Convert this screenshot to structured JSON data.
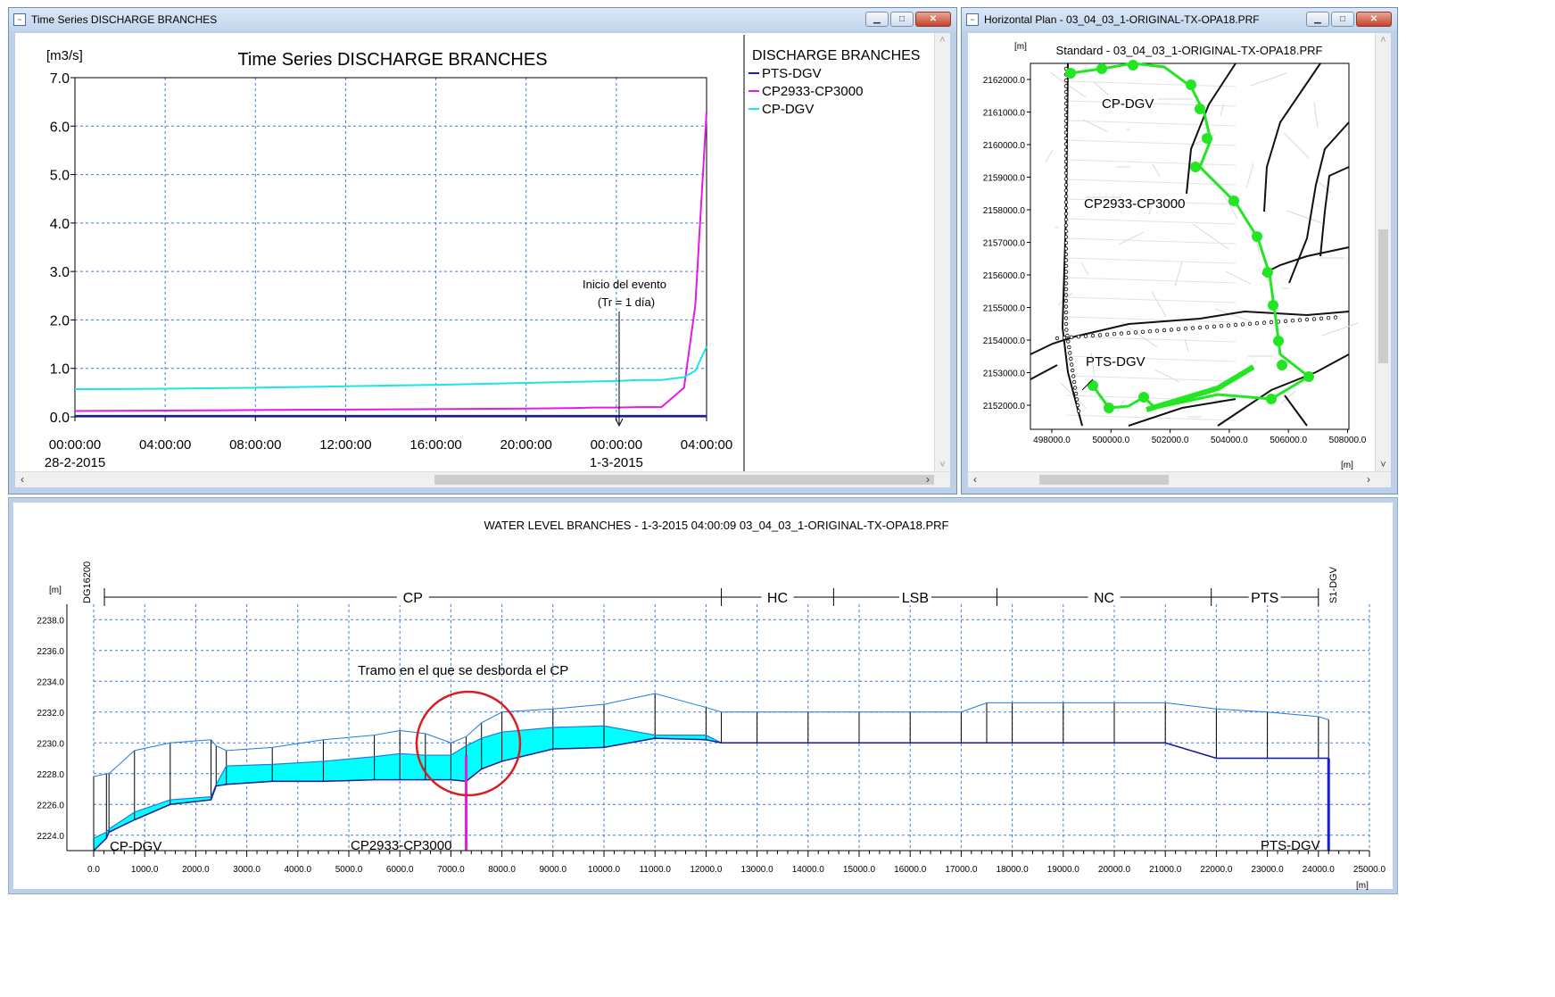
{
  "ts_window": {
    "title": "Time Series DISCHARGE BRANCHES",
    "chart_title": "Time Series  DISCHARGE  BRANCHES",
    "unit": "[m3/s]",
    "legend_title": "DISCHARGE  BRANCHES",
    "annotation_line1": "Inicio del evento",
    "annotation_line2": "(Tr = 1 día)"
  },
  "plan_window": {
    "title": "Horizontal Plan - 03_04_03_1-ORIGINAL-TX-OPA18.PRF",
    "subtitle": "Standard - 03_04_03_1-ORIGINAL-TX-OPA18.PRF",
    "unit_y": "[m]",
    "unit_x": "[m]",
    "labels": [
      "CP-DGV",
      "CP2933-CP3000",
      "PTS-DGV"
    ],
    "yticks": [
      "2162000.0",
      "2161000.0",
      "2160000.0",
      "2159000.0",
      "2158000.0",
      "2157000.0",
      "2156000.0",
      "2155000.0",
      "2154000.0",
      "2153000.0",
      "2152000.0"
    ],
    "xticks": [
      "498000.0",
      "500000.0",
      "502000.0",
      "504000.0",
      "506000.0",
      "508000.0"
    ]
  },
  "profile_window": {
    "title": "WATER LEVEL  BRANCHES - 1-3-2015 04:00:09 03_04_03_1-ORIGINAL-TX-OPA18.PRF",
    "unit_y": "[m]",
    "unit_x": "[m]",
    "annotation": "Tramo en el que se desborda el CP",
    "left_node": "DG16200",
    "right_node": "S1-DGV",
    "branches": [
      "CP",
      "HC",
      "LSB",
      "NC",
      "PTS"
    ],
    "labels": [
      "CP-DGV",
      "CP2933-CP3000",
      "PTS-DGV"
    ]
  },
  "chart_data": [
    {
      "type": "line",
      "title": "Time Series  DISCHARGE  BRANCHES",
      "ylabel": "[m3/s]",
      "xlabel": "",
      "ylim": [
        0,
        7
      ],
      "yticks": [
        "0.0",
        "1.0",
        "2.0",
        "3.0",
        "4.0",
        "5.0",
        "6.0",
        "7.0"
      ],
      "xtick_times": [
        "00:00:00",
        "04:00:00",
        "08:00:00",
        "12:00:00",
        "16:00:00",
        "20:00:00",
        "00:00:00",
        "04:00:00"
      ],
      "xtick_dates": [
        "28-2-2015",
        "",
        "",
        "",
        "",
        "",
        "1-3-2015",
        ""
      ],
      "x": [
        "2015-02-28 00:00",
        "2015-02-28 04:00",
        "2015-02-28 08:00",
        "2015-02-28 12:00",
        "2015-02-28 16:00",
        "2015-02-28 20:00",
        "2015-02-28 22:00",
        "2015-02-28 23:00",
        "2015-03-01 00:00",
        "2015-03-01 01:00",
        "2015-03-01 02:00",
        "2015-03-01 03:00",
        "2015-03-01 03:30",
        "2015-03-01 04:00"
      ],
      "series": [
        {
          "name": "PTS-DGV",
          "color": "#1a1ad6",
          "values": [
            0.02,
            0.02,
            0.02,
            0.02,
            0.02,
            0.02,
            0.02,
            0.02,
            0.02,
            0.02,
            0.02,
            0.02,
            0.02,
            0.02
          ]
        },
        {
          "name": "CP2933-CP3000",
          "color": "#e619e6",
          "values": [
            0.12,
            0.13,
            0.14,
            0.15,
            0.16,
            0.17,
            0.18,
            0.19,
            0.19,
            0.2,
            0.2,
            0.6,
            2.3,
            6.3
          ]
        },
        {
          "name": "CP-DGV",
          "color": "#19e6e6",
          "values": [
            0.57,
            0.58,
            0.6,
            0.63,
            0.66,
            0.7,
            0.72,
            0.73,
            0.74,
            0.76,
            0.76,
            0.82,
            0.95,
            1.45
          ]
        }
      ]
    },
    {
      "type": "area",
      "title": "WATER LEVEL  BRANCHES - 1-3-2015 04:00:09 03_04_03_1-ORIGINAL-TX-OPA18.PRF",
      "ylabel": "[m]",
      "xlabel": "[m]",
      "xlim": [
        0,
        25000
      ],
      "ylim": [
        2223,
        2239
      ],
      "xticks": [
        "0.0",
        "1000.0",
        "2000.0",
        "3000.0",
        "4000.0",
        "5000.0",
        "6000.0",
        "7000.0",
        "8000.0",
        "9000.0",
        "10000.0",
        "11000.0",
        "12000.0",
        "13000.0",
        "14000.0",
        "15000.0",
        "16000.0",
        "17000.0",
        "18000.0",
        "19000.0",
        "20000.0",
        "21000.0",
        "22000.0",
        "23000.0",
        "24000.0",
        "25000.0"
      ],
      "yticks": [
        "2224.0",
        "2226.0",
        "2228.0",
        "2230.0",
        "2232.0",
        "2234.0",
        "2236.0",
        "2238.0"
      ],
      "x": [
        0,
        250,
        300,
        800,
        1500,
        2300,
        2400,
        2600,
        3500,
        4500,
        5500,
        6000,
        6500,
        7000,
        7300,
        7600,
        8000,
        9000,
        10000,
        11000,
        12000,
        12300,
        13000,
        14000,
        15000,
        16000,
        17000,
        17500,
        18000,
        19000,
        20000,
        21000,
        22000,
        23000,
        24000,
        24200
      ],
      "series": [
        {
          "name": "bed",
          "values": [
            2223.0,
            2223.8,
            2224.2,
            2225.0,
            2226.0,
            2226.3,
            2227.2,
            2227.3,
            2227.5,
            2227.5,
            2227.6,
            2227.6,
            2227.6,
            2227.6,
            2227.5,
            2228.3,
            2228.8,
            2229.6,
            2229.7,
            2230.3,
            2230.2,
            2230.0,
            2230.0,
            2230.0,
            2230.0,
            2230.0,
            2230.0,
            2230.0,
            2230.0,
            2230.0,
            2230.0,
            2230.0,
            2229.0,
            2229.0,
            2229.0,
            2229.0
          ]
        },
        {
          "name": "water",
          "values": [
            2223.8,
            2224.2,
            2224.4,
            2225.5,
            2226.3,
            2226.5,
            2227.3,
            2228.5,
            2228.6,
            2228.8,
            2229.1,
            2229.3,
            2229.2,
            2229.2,
            2229.8,
            2230.3,
            2230.7,
            2231.0,
            2231.1,
            2230.5,
            2230.5,
            2230.0,
            2230.0,
            2230.0,
            2230.0,
            2230.0,
            2230.0,
            2230.0,
            2230.0,
            2230.0,
            2230.0,
            2230.0,
            2229.0,
            2229.0,
            2229.0,
            2229.0
          ]
        },
        {
          "name": "bank",
          "values": [
            2227.8,
            2228.0,
            2228.0,
            2229.5,
            2230.0,
            2230.2,
            2229.8,
            2229.5,
            2229.7,
            2230.2,
            2230.5,
            2230.8,
            2230.6,
            2230.0,
            2230.4,
            2231.3,
            2232.0,
            2232.2,
            2232.5,
            2233.2,
            2232.3,
            2232.0,
            2232.0,
            2232.0,
            2232.0,
            2232.0,
            2232.0,
            2232.6,
            2232.6,
            2232.6,
            2232.6,
            2232.6,
            2232.2,
            2232.0,
            2231.7,
            2231.5
          ]
        }
      ]
    }
  ]
}
